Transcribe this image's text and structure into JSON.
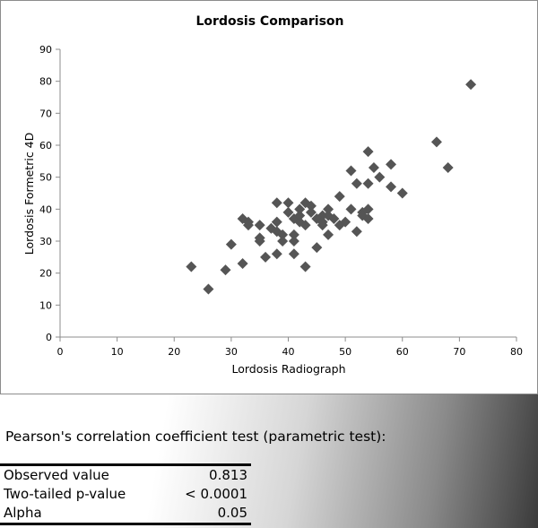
{
  "chart_data": {
    "type": "scatter",
    "title": "Lordosis Comparison",
    "xlabel": "Lordosis Radiograph",
    "ylabel": "Lordosis Formetric 4D",
    "xlim": [
      0,
      80
    ],
    "ylim": [
      0,
      90
    ],
    "xticks": [
      0,
      10,
      20,
      30,
      40,
      50,
      60,
      70,
      80
    ],
    "yticks": [
      0,
      10,
      20,
      30,
      40,
      50,
      60,
      70,
      80,
      90
    ],
    "grid": false,
    "marker": "diamond",
    "marker_color": "#555555",
    "points": [
      [
        23,
        22
      ],
      [
        26,
        15
      ],
      [
        29,
        21
      ],
      [
        30,
        29
      ],
      [
        32,
        23
      ],
      [
        32,
        37
      ],
      [
        33,
        36
      ],
      [
        33,
        35
      ],
      [
        35,
        30
      ],
      [
        35,
        35
      ],
      [
        35,
        31
      ],
      [
        36,
        25
      ],
      [
        37,
        34
      ],
      [
        38,
        26
      ],
      [
        38,
        33
      ],
      [
        38,
        36
      ],
      [
        38,
        42
      ],
      [
        39,
        32
      ],
      [
        39,
        30
      ],
      [
        40,
        42
      ],
      [
        40,
        39
      ],
      [
        41,
        37
      ],
      [
        41,
        32
      ],
      [
        41,
        26
      ],
      [
        41,
        30
      ],
      [
        42,
        36
      ],
      [
        42,
        38
      ],
      [
        42,
        40
      ],
      [
        43,
        35
      ],
      [
        43,
        42
      ],
      [
        43,
        22
      ],
      [
        44,
        41
      ],
      [
        44,
        39
      ],
      [
        45,
        28
      ],
      [
        45,
        37
      ],
      [
        46,
        38
      ],
      [
        46,
        35
      ],
      [
        46,
        36
      ],
      [
        47,
        32
      ],
      [
        47,
        38
      ],
      [
        47,
        40
      ],
      [
        48,
        37
      ],
      [
        49,
        35
      ],
      [
        49,
        44
      ],
      [
        50,
        36
      ],
      [
        51,
        52
      ],
      [
        51,
        40
      ],
      [
        52,
        48
      ],
      [
        52,
        33
      ],
      [
        53,
        39
      ],
      [
        53,
        38
      ],
      [
        54,
        37
      ],
      [
        54,
        40
      ],
      [
        54,
        58
      ],
      [
        54,
        48
      ],
      [
        55,
        53
      ],
      [
        56,
        50
      ],
      [
        58,
        47
      ],
      [
        58,
        54
      ],
      [
        60,
        45
      ],
      [
        66,
        61
      ],
      [
        68,
        53
      ],
      [
        72,
        79
      ]
    ]
  },
  "stats": {
    "test_title": "Pearson's correlation coefficient test (parametric test):",
    "rows": [
      {
        "label": "Observed value",
        "value": "0.813"
      },
      {
        "label": "Two-tailed p-value",
        "value": "< 0.0001"
      },
      {
        "label": "Alpha",
        "value": "0.05"
      }
    ]
  }
}
